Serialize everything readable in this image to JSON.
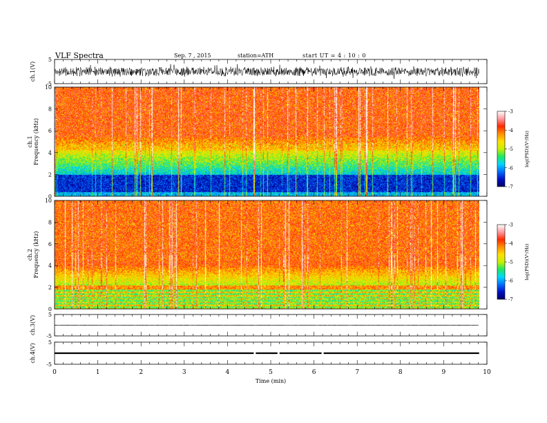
{
  "header": {
    "title": "VLF  Spectra",
    "date": "Sep. 7  , 2015",
    "station": "station=ATH",
    "start": "start  UT  =   4 : 10 : 0"
  },
  "chart_data": [
    {
      "type": "line",
      "ylabel": "ch.1(V)",
      "ylim": [
        -5,
        5
      ],
      "y_ticks": [
        "5",
        "-5"
      ],
      "description_level": "broadband noise mostly between -1.5 and 1.5 V"
    },
    {
      "type": "heatmap",
      "ylabel": "ch.1\nFrequency  (kHz)",
      "ylim": [
        0,
        10
      ],
      "y_ticks": [
        "0",
        "2",
        "4",
        "6",
        "8",
        "10"
      ],
      "colorbar": {
        "label": "log(PSD)(V²/Hz)",
        "range": [
          -7,
          -3
        ],
        "ticks": [
          "-3",
          "-4",
          "-5",
          "-6",
          "-7"
        ]
      }
    },
    {
      "type": "heatmap",
      "ylabel": "ch.2\nFrequency  (kHz)",
      "ylim": [
        0,
        10
      ],
      "y_ticks": [
        "0",
        "2",
        "4",
        "6",
        "8",
        "10"
      ],
      "colorbar": {
        "label": "log(PSD)(V²/Hz)",
        "range": [
          -7,
          -3
        ],
        "ticks": [
          "-3",
          "-4",
          "-5",
          "-6",
          "-7"
        ]
      }
    },
    {
      "type": "line",
      "ylabel": "ch.3(V)",
      "ylim": [
        -5,
        5
      ],
      "y_ticks": [
        "5",
        "-5"
      ]
    },
    {
      "type": "line",
      "ylabel": "ch.4(V)",
      "ylim": [
        -5,
        5
      ],
      "y_ticks": [
        "5",
        "-5"
      ],
      "gaps_min": [
        4.63,
        5.18,
        6.2
      ]
    }
  ],
  "x_axis": {
    "xlabel": "Time  (min)",
    "xlim": [
      0,
      10
    ],
    "data_end": 9.82,
    "ticks": [
      "0",
      "1",
      "2",
      "3",
      "4",
      "5",
      "6",
      "7",
      "8",
      "9",
      "10"
    ]
  },
  "colors": {
    "heat_scale": [
      "#000066",
      "#0010c8",
      "#0070ff",
      "#00d8ff",
      "#20e860",
      "#c8f000",
      "#ffe000",
      "#ff9000",
      "#ff2a00",
      "#ff9aa0",
      "#ffffff"
    ]
  }
}
